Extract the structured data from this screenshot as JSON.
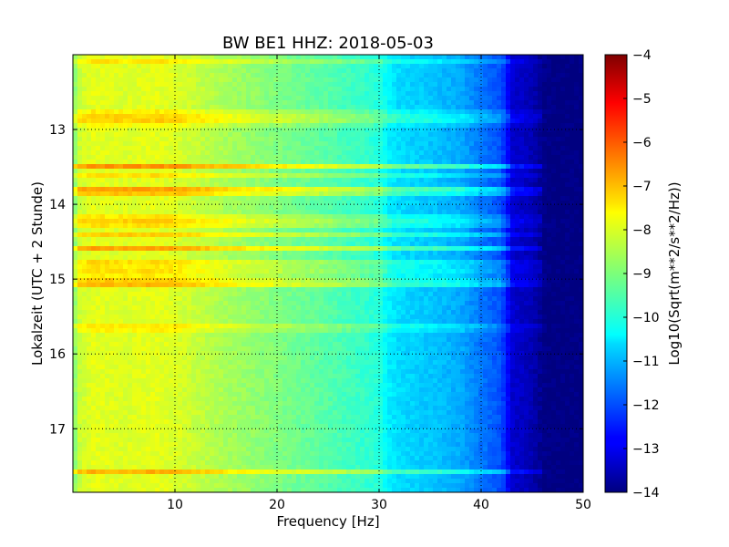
{
  "chart_data": {
    "type": "heatmap",
    "title": "BW BE1 HHZ: 2018-05-03",
    "xlabel": "Frequency [Hz]",
    "ylabel": "Lokalzeit (UTC + 2 Stunde)",
    "colorbar_label": "Log10(Sqrt(m**2/s**2/Hz))",
    "xlim": [
      0,
      50
    ],
    "ylim": [
      12.0,
      17.85
    ],
    "y_inverted": true,
    "clim": [
      -14,
      -4
    ],
    "colormap": "jet",
    "grid": true,
    "x_ticks": [
      10,
      20,
      30,
      40,
      50
    ],
    "x_tick_labels": [
      "10",
      "20",
      "30",
      "40",
      "50"
    ],
    "y_ticks": [
      13,
      14,
      15,
      16,
      17
    ],
    "y_tick_labels": [
      "13",
      "14",
      "15",
      "16",
      "17"
    ],
    "colorbar_ticks": [
      -4,
      -5,
      -6,
      -7,
      -8,
      -9,
      -10,
      -11,
      -12,
      -13,
      -14
    ],
    "colorbar_tick_labels": [
      "−4",
      "−5",
      "−6",
      "−7",
      "−8",
      "−9",
      "−10",
      "−11",
      "−12",
      "−13",
      "−14"
    ],
    "spectrum_profile": {
      "frequency_hz": [
        0,
        0.5,
        2,
        5,
        8,
        10,
        15,
        20,
        25,
        28,
        30,
        31,
        32,
        35,
        38,
        40,
        42,
        43,
        45,
        46,
        47,
        50
      ],
      "value": [
        -9.2,
        -8.3,
        -8.0,
        -8.1,
        -8.0,
        -8.1,
        -8.6,
        -9.0,
        -9.4,
        -9.7,
        -9.9,
        -10.4,
        -10.6,
        -10.8,
        -11.1,
        -11.6,
        -12.0,
        -13.2,
        -13.5,
        -13.9,
        -14.0,
        -14.0
      ]
    },
    "elevated_bands": [
      {
        "time": 12.08,
        "delta": 0.5
      },
      {
        "time": 12.8,
        "delta": 0.9
      },
      {
        "time": 12.9,
        "delta": 0.8
      },
      {
        "time": 13.5,
        "delta": 1.2
      },
      {
        "time": 13.6,
        "delta": 0.6
      },
      {
        "time": 13.8,
        "delta": 1.0
      },
      {
        "time": 13.85,
        "delta": 0.8
      },
      {
        "time": 14.2,
        "delta": 1.0
      },
      {
        "time": 14.27,
        "delta": 0.6
      },
      {
        "time": 14.4,
        "delta": 0.7
      },
      {
        "time": 14.6,
        "delta": 1.1
      },
      {
        "time": 14.8,
        "delta": 0.9
      },
      {
        "time": 14.92,
        "delta": 0.8
      },
      {
        "time": 15.05,
        "delta": 1.4
      },
      {
        "time": 15.65,
        "delta": 0.7
      },
      {
        "time": 17.57,
        "delta": 0.9
      }
    ]
  }
}
